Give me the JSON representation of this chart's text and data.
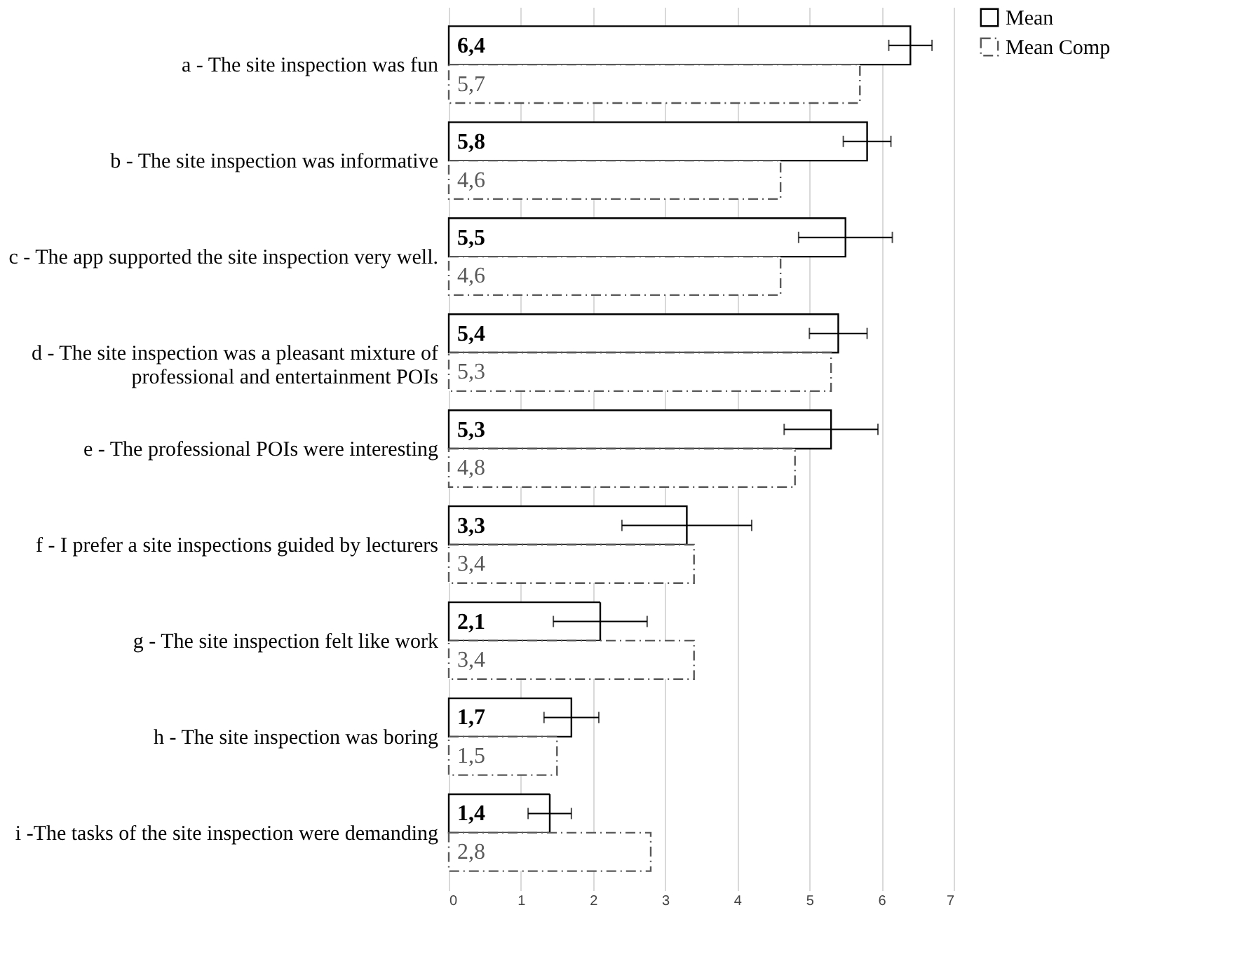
{
  "chart_data": {
    "type": "bar",
    "orientation": "horizontal",
    "categories": [
      "a - The site inspection was fun",
      "b - The site inspection was informative",
      "c - The app supported the site inspection very well.",
      "d - The site inspection was a pleasant mixture of professional and entertainment POIs",
      "e - The professional POIs were interesting",
      "f - I prefer a site inspections guided by lecturers",
      "g - The site inspection felt like work",
      "h - The site inspection was boring",
      "i -The tasks of the site inspection were demanding"
    ],
    "series": [
      {
        "name": "Mean",
        "color": "#000000",
        "line_style": "solid",
        "values": [
          6.4,
          5.8,
          5.5,
          5.4,
          5.3,
          3.3,
          2.1,
          1.7,
          1.4
        ],
        "value_labels": [
          "6,4",
          "5,8",
          "5,5",
          "5,4",
          "5,3",
          "3,3",
          "2,1",
          "1,7",
          "1,4"
        ],
        "errors": [
          0.3,
          0.33,
          0.65,
          0.4,
          0.65,
          0.9,
          0.65,
          0.38,
          0.3
        ]
      },
      {
        "name": "Mean Comp",
        "color": "#595959",
        "line_style": "dashed",
        "values": [
          5.7,
          4.6,
          4.6,
          5.3,
          4.8,
          3.4,
          3.4,
          1.5,
          2.8
        ],
        "value_labels": [
          "5,7",
          "4,6",
          "4,6",
          "5,3",
          "4,8",
          "3,4",
          "3,4",
          "1,5",
          "2,8"
        ]
      }
    ],
    "xlim": [
      0,
      7
    ],
    "xticks": [
      0,
      1,
      2,
      3,
      4,
      5,
      6,
      7
    ],
    "grid": "x",
    "legend": "right"
  }
}
